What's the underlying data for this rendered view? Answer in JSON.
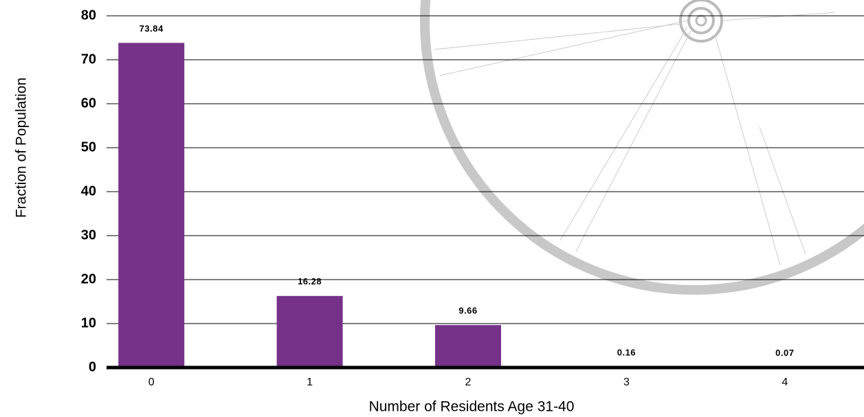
{
  "chart_data": {
    "type": "bar",
    "x_label": "Number of Residents Age 31-40",
    "y_label": "Fraction of Population",
    "categories": [
      "0",
      "1",
      "2",
      "3",
      "4"
    ],
    "values": [
      73.84,
      16.28,
      9.66,
      0.16,
      0.07
    ],
    "color": "#763289",
    "ylim": [
      0,
      80
    ],
    "yticks": [
      0,
      10,
      20,
      30,
      40,
      50,
      60,
      70,
      80
    ],
    "grid": true
  }
}
